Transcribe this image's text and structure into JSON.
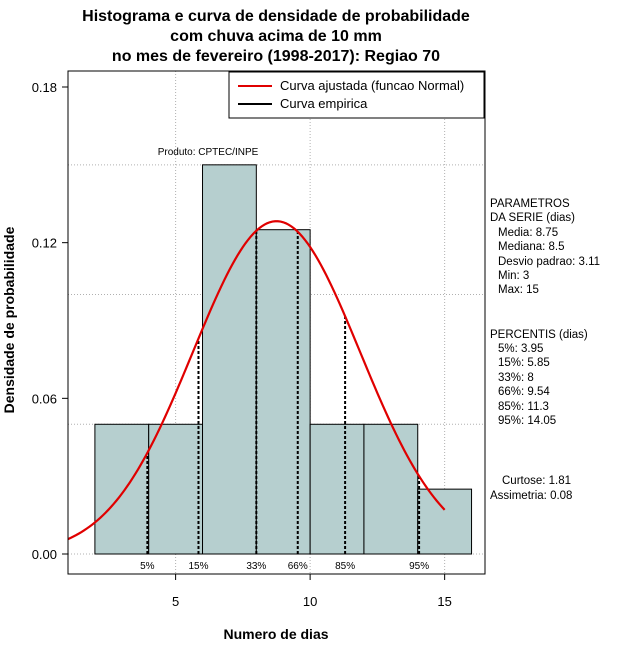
{
  "chart_data": {
    "type": "bar",
    "title_lines": [
      "Histograma e curva de densidade de probabilidade",
      "com chuva acima de 10 mm",
      "no mes de fevereiro (1998-2017): Regiao 70"
    ],
    "xlabel": "Numero de dias",
    "ylabel": "Densidade de probabilidade",
    "xlim": [
      1,
      16.5
    ],
    "ylim": [
      0,
      0.19
    ],
    "x_ticks": [
      5,
      10,
      15
    ],
    "y_ticks": [
      0.0,
      0.06,
      0.12,
      0.18
    ],
    "y_tick_labels": [
      "0.00",
      "0.06",
      "0.12",
      "0.18"
    ],
    "gridlines_x": [
      5,
      10,
      15
    ],
    "gridlines_y": [
      0.0,
      0.05,
      0.1,
      0.15
    ],
    "bins": [
      {
        "from": 2,
        "to": 4,
        "density": 0.05
      },
      {
        "from": 4,
        "to": 6,
        "density": 0.05
      },
      {
        "from": 6,
        "to": 8,
        "density": 0.15
      },
      {
        "from": 8,
        "to": 10,
        "density": 0.125
      },
      {
        "from": 10,
        "to": 12,
        "density": 0.05
      },
      {
        "from": 12,
        "to": 14,
        "density": 0.05
      },
      {
        "from": 14,
        "to": 16,
        "density": 0.025
      }
    ],
    "bar_color": "#b6cfcf",
    "normal_fit": {
      "mean": 8.75,
      "sd": 3.11,
      "x_range": [
        1,
        15
      ],
      "color": "#e00000"
    },
    "percentiles": [
      {
        "label": "5%",
        "x": 3.95
      },
      {
        "label": "15%",
        "x": 5.85
      },
      {
        "label": "33%",
        "x": 8
      },
      {
        "label": "66%",
        "x": 9.54
      },
      {
        "label": "85%",
        "x": 11.3
      },
      {
        "label": "95%",
        "x": 14.05
      }
    ],
    "legend": {
      "position": "top-right",
      "entries": [
        {
          "label": "Curva ajustada (funcao Normal)",
          "color": "#e00000"
        },
        {
          "label": "Curva empirica",
          "color": "#000000"
        }
      ]
    },
    "annotation": "Produto: CPTEC/INPE"
  },
  "side_panel": {
    "parametros_title": [
      "PARAMETROS",
      "DA SERIE (dias)"
    ],
    "parametros": [
      "Media: 8.75",
      "Mediana: 8.5",
      "Desvio padrao: 3.11",
      "Min: 3",
      "Max: 15"
    ],
    "percentis_title": "PERCENTIS (dias)",
    "percentis": [
      "5%: 3.95",
      "15%: 5.85",
      "33%: 8",
      "66%: 9.54",
      "85%: 11.3",
      "95%: 14.05"
    ],
    "stats": [
      "Curtose: 1.81",
      "Assimetria: 0.08"
    ]
  }
}
